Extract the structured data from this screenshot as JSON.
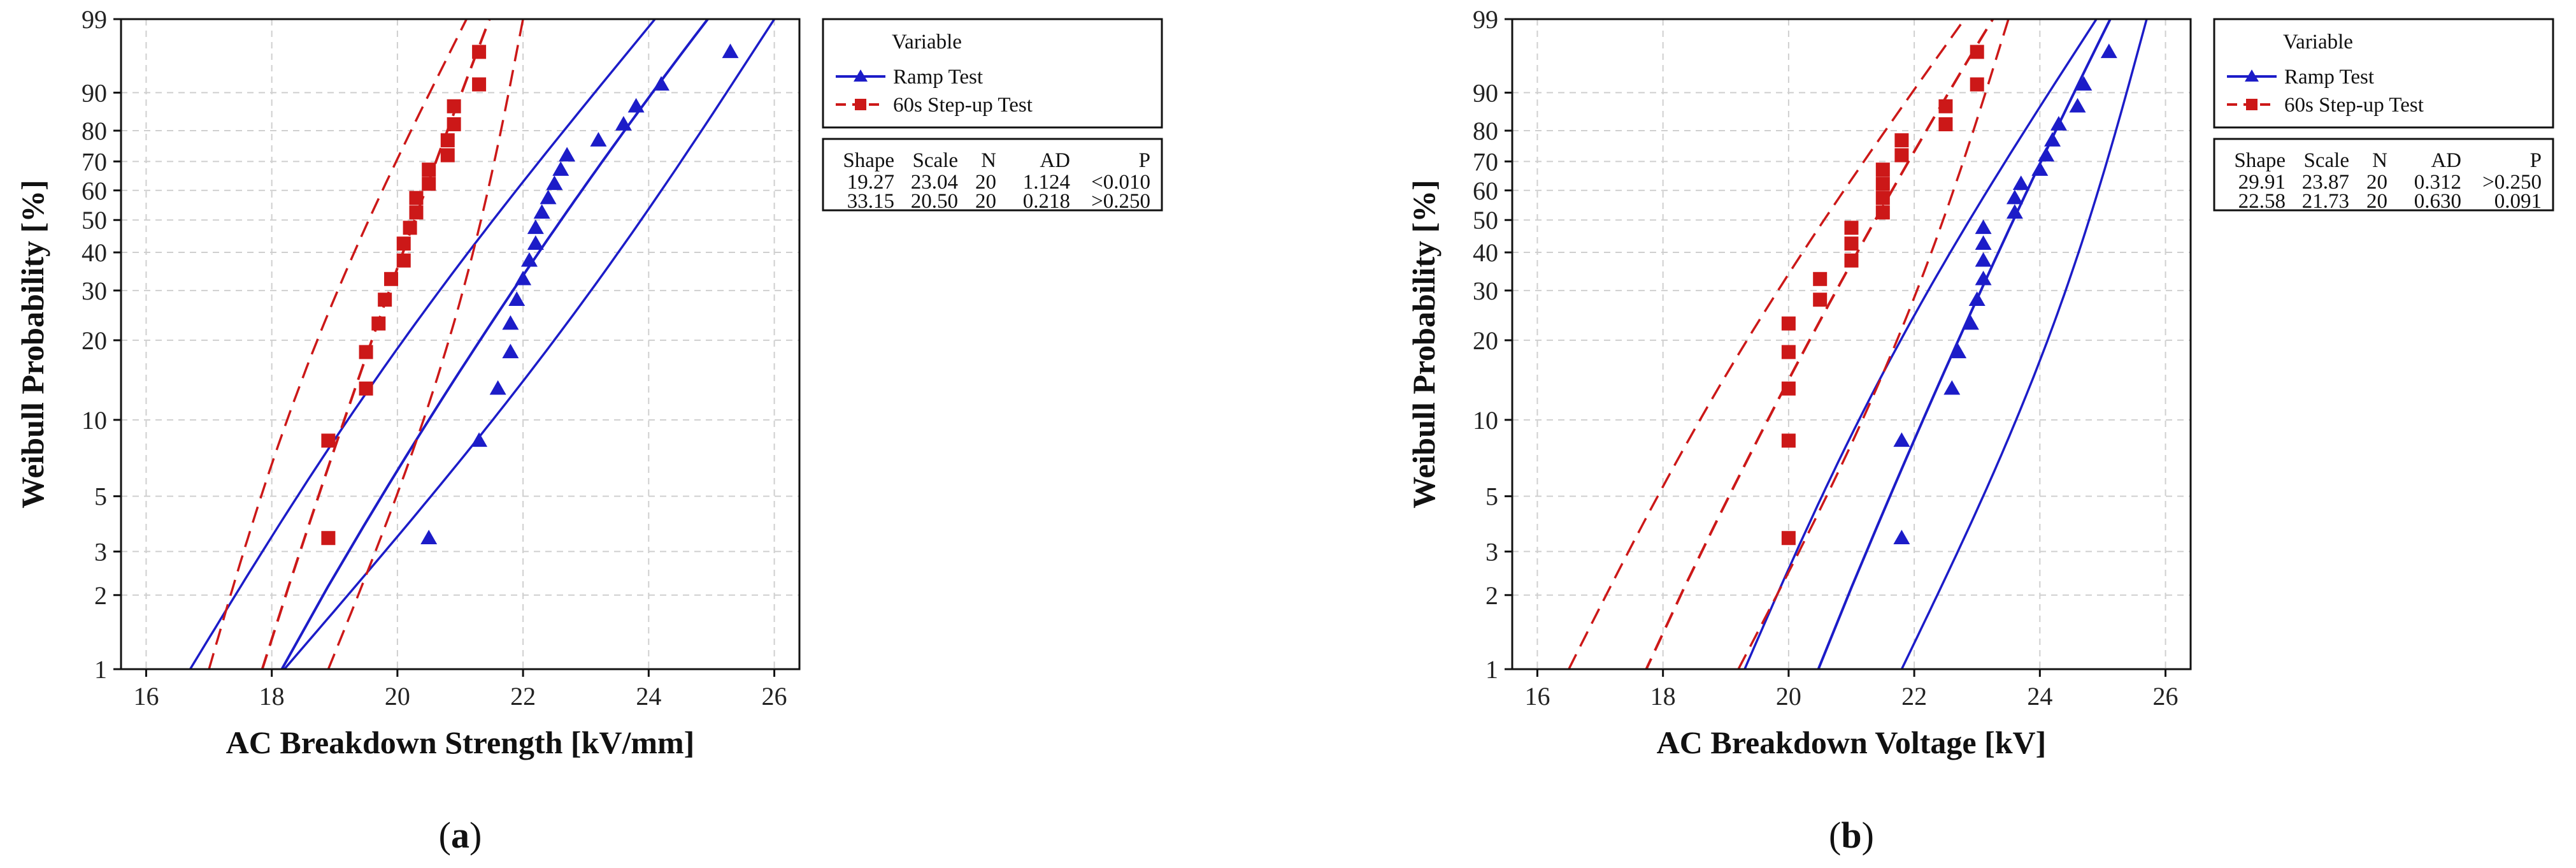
{
  "colors": {
    "ramp": "#1c1cc8",
    "step": "#cc1818",
    "grid": "#cfcfcf",
    "frame": "#111111"
  },
  "chart_data": [
    {
      "type": "scatter",
      "subfigure_label": "a",
      "title": "",
      "xlabel": "AC Breakdown Strength [kV/mm]",
      "ylabel": "Weibull Probability [%]",
      "xlim": [
        15.6,
        26.4
      ],
      "xticks": [
        16,
        18,
        20,
        22,
        24,
        26
      ],
      "ylim": [
        1,
        99
      ],
      "yticks": [
        1,
        2,
        3,
        5,
        10,
        20,
        30,
        40,
        50,
        60,
        70,
        80,
        90,
        99
      ],
      "legend": {
        "title": "Variable",
        "entries": [
          "Ramp Test",
          "60s Step-up Test"
        ],
        "table_header": [
          "Shape",
          "Scale",
          "N",
          "AD",
          "P"
        ],
        "table_rows": [
          [
            "19.27",
            "23.04",
            "20",
            "1.124",
            "<0.010"
          ],
          [
            "33.15",
            "20.50",
            "20",
            "0.218",
            ">0.250"
          ]
        ]
      },
      "series": [
        {
          "name": "Ramp Test",
          "marker": "triangle",
          "shape": 19.27,
          "scale": 23.04,
          "ci_lower_x_at_p1": 16.7,
          "ci_lower_x_at_p99": 24.1,
          "ci_upper_x_at_p1": 18.2,
          "ci_upper_x_at_p99": 26.0,
          "points": [
            [
              20.5,
              3.4
            ],
            [
              21.3,
              8.3
            ],
            [
              21.6,
              13.2
            ],
            [
              21.8,
              18.1
            ],
            [
              21.8,
              23.0
            ],
            [
              21.9,
              27.9
            ],
            [
              22.0,
              32.8
            ],
            [
              22.1,
              37.7
            ],
            [
              22.2,
              42.6
            ],
            [
              22.2,
              47.5
            ],
            [
              22.3,
              52.5
            ],
            [
              22.4,
              57.4
            ],
            [
              22.5,
              62.3
            ],
            [
              22.6,
              67.2
            ],
            [
              22.7,
              72.1
            ],
            [
              23.2,
              77.0
            ],
            [
              23.6,
              81.9
            ],
            [
              23.8,
              86.8
            ],
            [
              24.2,
              91.7
            ],
            [
              25.3,
              96.6
            ]
          ]
        },
        {
          "name": "60s Step-up Test",
          "marker": "square",
          "shape": 33.15,
          "scale": 20.5,
          "ci_lower_x_at_p1": 17.0,
          "ci_lower_x_at_p99": 21.1,
          "ci_upper_x_at_p1": 18.9,
          "ci_upper_x_at_p99": 22.0,
          "points": [
            [
              18.9,
              3.4
            ],
            [
              18.9,
              8.3
            ],
            [
              19.5,
              13.2
            ],
            [
              19.5,
              18.1
            ],
            [
              19.7,
              23.0
            ],
            [
              19.8,
              27.9
            ],
            [
              19.9,
              32.8
            ],
            [
              20.1,
              37.7
            ],
            [
              20.1,
              42.6
            ],
            [
              20.2,
              47.5
            ],
            [
              20.3,
              52.5
            ],
            [
              20.3,
              57.4
            ],
            [
              20.5,
              62.3
            ],
            [
              20.5,
              67.2
            ],
            [
              20.8,
              72.1
            ],
            [
              20.8,
              77.0
            ],
            [
              20.9,
              81.9
            ],
            [
              20.9,
              86.8
            ],
            [
              21.3,
              91.7
            ],
            [
              21.3,
              96.6
            ]
          ]
        }
      ]
    },
    {
      "type": "scatter",
      "subfigure_label": "b",
      "title": "",
      "xlabel": "AC Breakdown Voltage [kV]",
      "ylabel": "Weibull Probability [%]",
      "xlim": [
        15.6,
        26.4
      ],
      "xticks": [
        16,
        18,
        20,
        22,
        24,
        26
      ],
      "ylim": [
        1,
        99
      ],
      "yticks": [
        1,
        2,
        3,
        5,
        10,
        20,
        30,
        40,
        50,
        60,
        70,
        80,
        90,
        99
      ],
      "legend": {
        "title": "Variable",
        "entries": [
          "Ramp Test",
          "60s Step-up Test"
        ],
        "table_header": [
          "Shape",
          "Scale",
          "N",
          "AD",
          "P"
        ],
        "table_rows": [
          [
            "29.91",
            "23.87",
            "20",
            "0.312",
            ">0.250"
          ],
          [
            "22.58",
            "21.73",
            "20",
            "0.630",
            "0.091"
          ]
        ]
      },
      "series": [
        {
          "name": "Ramp Test",
          "marker": "triangle",
          "shape": 29.91,
          "scale": 23.87,
          "ci_lower_x_at_p1": 19.3,
          "ci_lower_x_at_p99": 24.9,
          "ci_upper_x_at_p1": 21.8,
          "ci_upper_x_at_p99": 25.7,
          "points": [
            [
              21.8,
              3.4
            ],
            [
              21.8,
              8.3
            ],
            [
              22.6,
              13.2
            ],
            [
              22.7,
              18.1
            ],
            [
              22.9,
              23.0
            ],
            [
              23.0,
              27.9
            ],
            [
              23.1,
              32.8
            ],
            [
              23.1,
              37.7
            ],
            [
              23.1,
              42.6
            ],
            [
              23.1,
              47.5
            ],
            [
              23.6,
              52.5
            ],
            [
              23.6,
              57.4
            ],
            [
              23.7,
              62.3
            ],
            [
              24.0,
              67.2
            ],
            [
              24.1,
              72.1
            ],
            [
              24.2,
              77.0
            ],
            [
              24.3,
              81.9
            ],
            [
              24.6,
              86.8
            ],
            [
              24.7,
              91.7
            ],
            [
              25.1,
              96.6
            ]
          ]
        },
        {
          "name": "60s Step-up Test",
          "marker": "square",
          "shape": 22.58,
          "scale": 21.73,
          "ci_lower_x_at_p1": 16.5,
          "ci_lower_x_at_p99": 22.8,
          "ci_upper_x_at_p1": 19.2,
          "ci_upper_x_at_p99": 23.5,
          "points": [
            [
              20.0,
              3.4
            ],
            [
              20.0,
              8.3
            ],
            [
              20.0,
              13.2
            ],
            [
              20.0,
              18.1
            ],
            [
              20.0,
              23.0
            ],
            [
              20.5,
              27.9
            ],
            [
              20.5,
              32.8
            ],
            [
              21.0,
              37.7
            ],
            [
              21.0,
              42.6
            ],
            [
              21.0,
              47.5
            ],
            [
              21.5,
              52.5
            ],
            [
              21.5,
              57.4
            ],
            [
              21.5,
              62.3
            ],
            [
              21.5,
              67.2
            ],
            [
              21.8,
              72.1
            ],
            [
              21.8,
              77.0
            ],
            [
              22.5,
              81.9
            ],
            [
              22.5,
              86.8
            ],
            [
              23.0,
              91.7
            ],
            [
              23.0,
              96.6
            ]
          ]
        }
      ]
    }
  ]
}
